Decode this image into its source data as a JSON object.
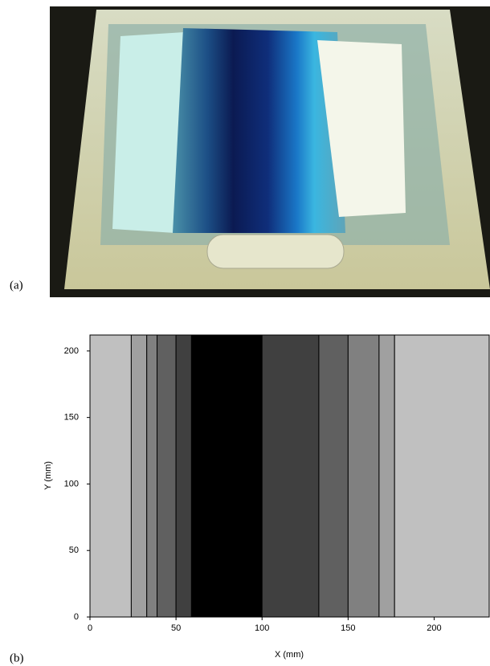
{
  "figure": {
    "panel_a_label": "(a)",
    "panel_b_label": "(b)"
  },
  "chart_data": {
    "type": "strips",
    "x_label": "X (mm)",
    "y_label": "Y (mm)",
    "edges": [
      0,
      24,
      33,
      39,
      50,
      59,
      100,
      133,
      150,
      168,
      177,
      232
    ],
    "colors": [
      "#c0c0c0",
      "#a0a0a0",
      "#808080",
      "#606060",
      "#404040",
      "#000000",
      "#404040",
      "#606060",
      "#808080",
      "#a0a0a0",
      "#c0c0c0"
    ],
    "xlim": [
      0,
      232
    ],
    "ylim": [
      0,
      212
    ],
    "xticks": [
      0,
      50,
      100,
      150,
      200
    ],
    "yticks": [
      0,
      50,
      100,
      150,
      200
    ]
  }
}
